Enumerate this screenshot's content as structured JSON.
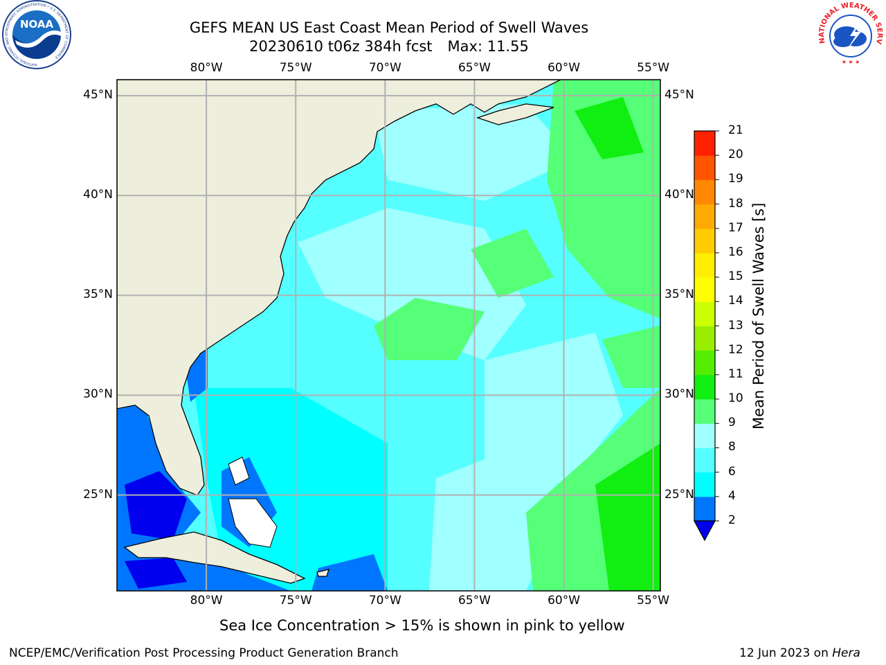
{
  "title": "GEFS MEAN US East Coast Mean Period of Swell Waves",
  "subtitle": "20230610 t06z 384h fcst",
  "max_label": "Max: 11.55",
  "logos": {
    "left": {
      "name": "NOAA",
      "text": "NOAA",
      "ring_text": "NATIONAL OCEANIC AND ATMOSPHERIC ADMINISTRATION • U.S. DEPARTMENT OF COMMERCE"
    },
    "right": {
      "name": "NWS",
      "ring_text": "NATIONAL WEATHER SERVICE"
    }
  },
  "map": {
    "lon_ticks": [
      "80°W",
      "75°W",
      "70°W",
      "65°W",
      "60°W",
      "55°W"
    ],
    "lat_ticks": [
      "45°N",
      "40°N",
      "35°N",
      "30°N",
      "25°N"
    ],
    "lon_values": [
      -80,
      -75,
      -70,
      -65,
      -60,
      -55
    ],
    "lat_values": [
      45,
      40,
      35,
      30,
      25
    ],
    "lon_range": [
      -85,
      -54.6
    ],
    "lat_range": [
      20.2,
      45.8
    ],
    "colors": {
      "land": "#eeeedd",
      "coast": "#000000",
      "grid": "#b0b0b0"
    }
  },
  "colorbar": {
    "label": "Mean Period of Swell Waves [s]",
    "ticks": [
      "21",
      "20",
      "19",
      "18",
      "17",
      "16",
      "15",
      "14",
      "13",
      "12",
      "11",
      "10",
      "9",
      "8",
      "6",
      "4",
      "2"
    ],
    "levels": [
      2,
      4,
      6,
      8,
      9,
      10,
      11,
      12,
      13,
      14,
      15,
      16,
      17,
      18,
      19,
      20,
      21
    ],
    "colors": [
      "#0076ff",
      "#00ffff",
      "#55ffff",
      "#a0ffff",
      "#55ff77",
      "#11ee11",
      "#55ee00",
      "#99ee00",
      "#ccff00",
      "#ffff00",
      "#ffee00",
      "#ffcc00",
      "#ffaa00",
      "#ff8800",
      "#ff5500",
      "#ff2200"
    ],
    "under_color": "#0000ee"
  },
  "note": "Sea Ice Concentration > 15% is shown in pink to yellow",
  "footer": {
    "left": "NCEP/EMC/Verification Post Processing Product Generation Branch",
    "right_date": "12 Jun 2023 on ",
    "right_host": "Hera"
  }
}
